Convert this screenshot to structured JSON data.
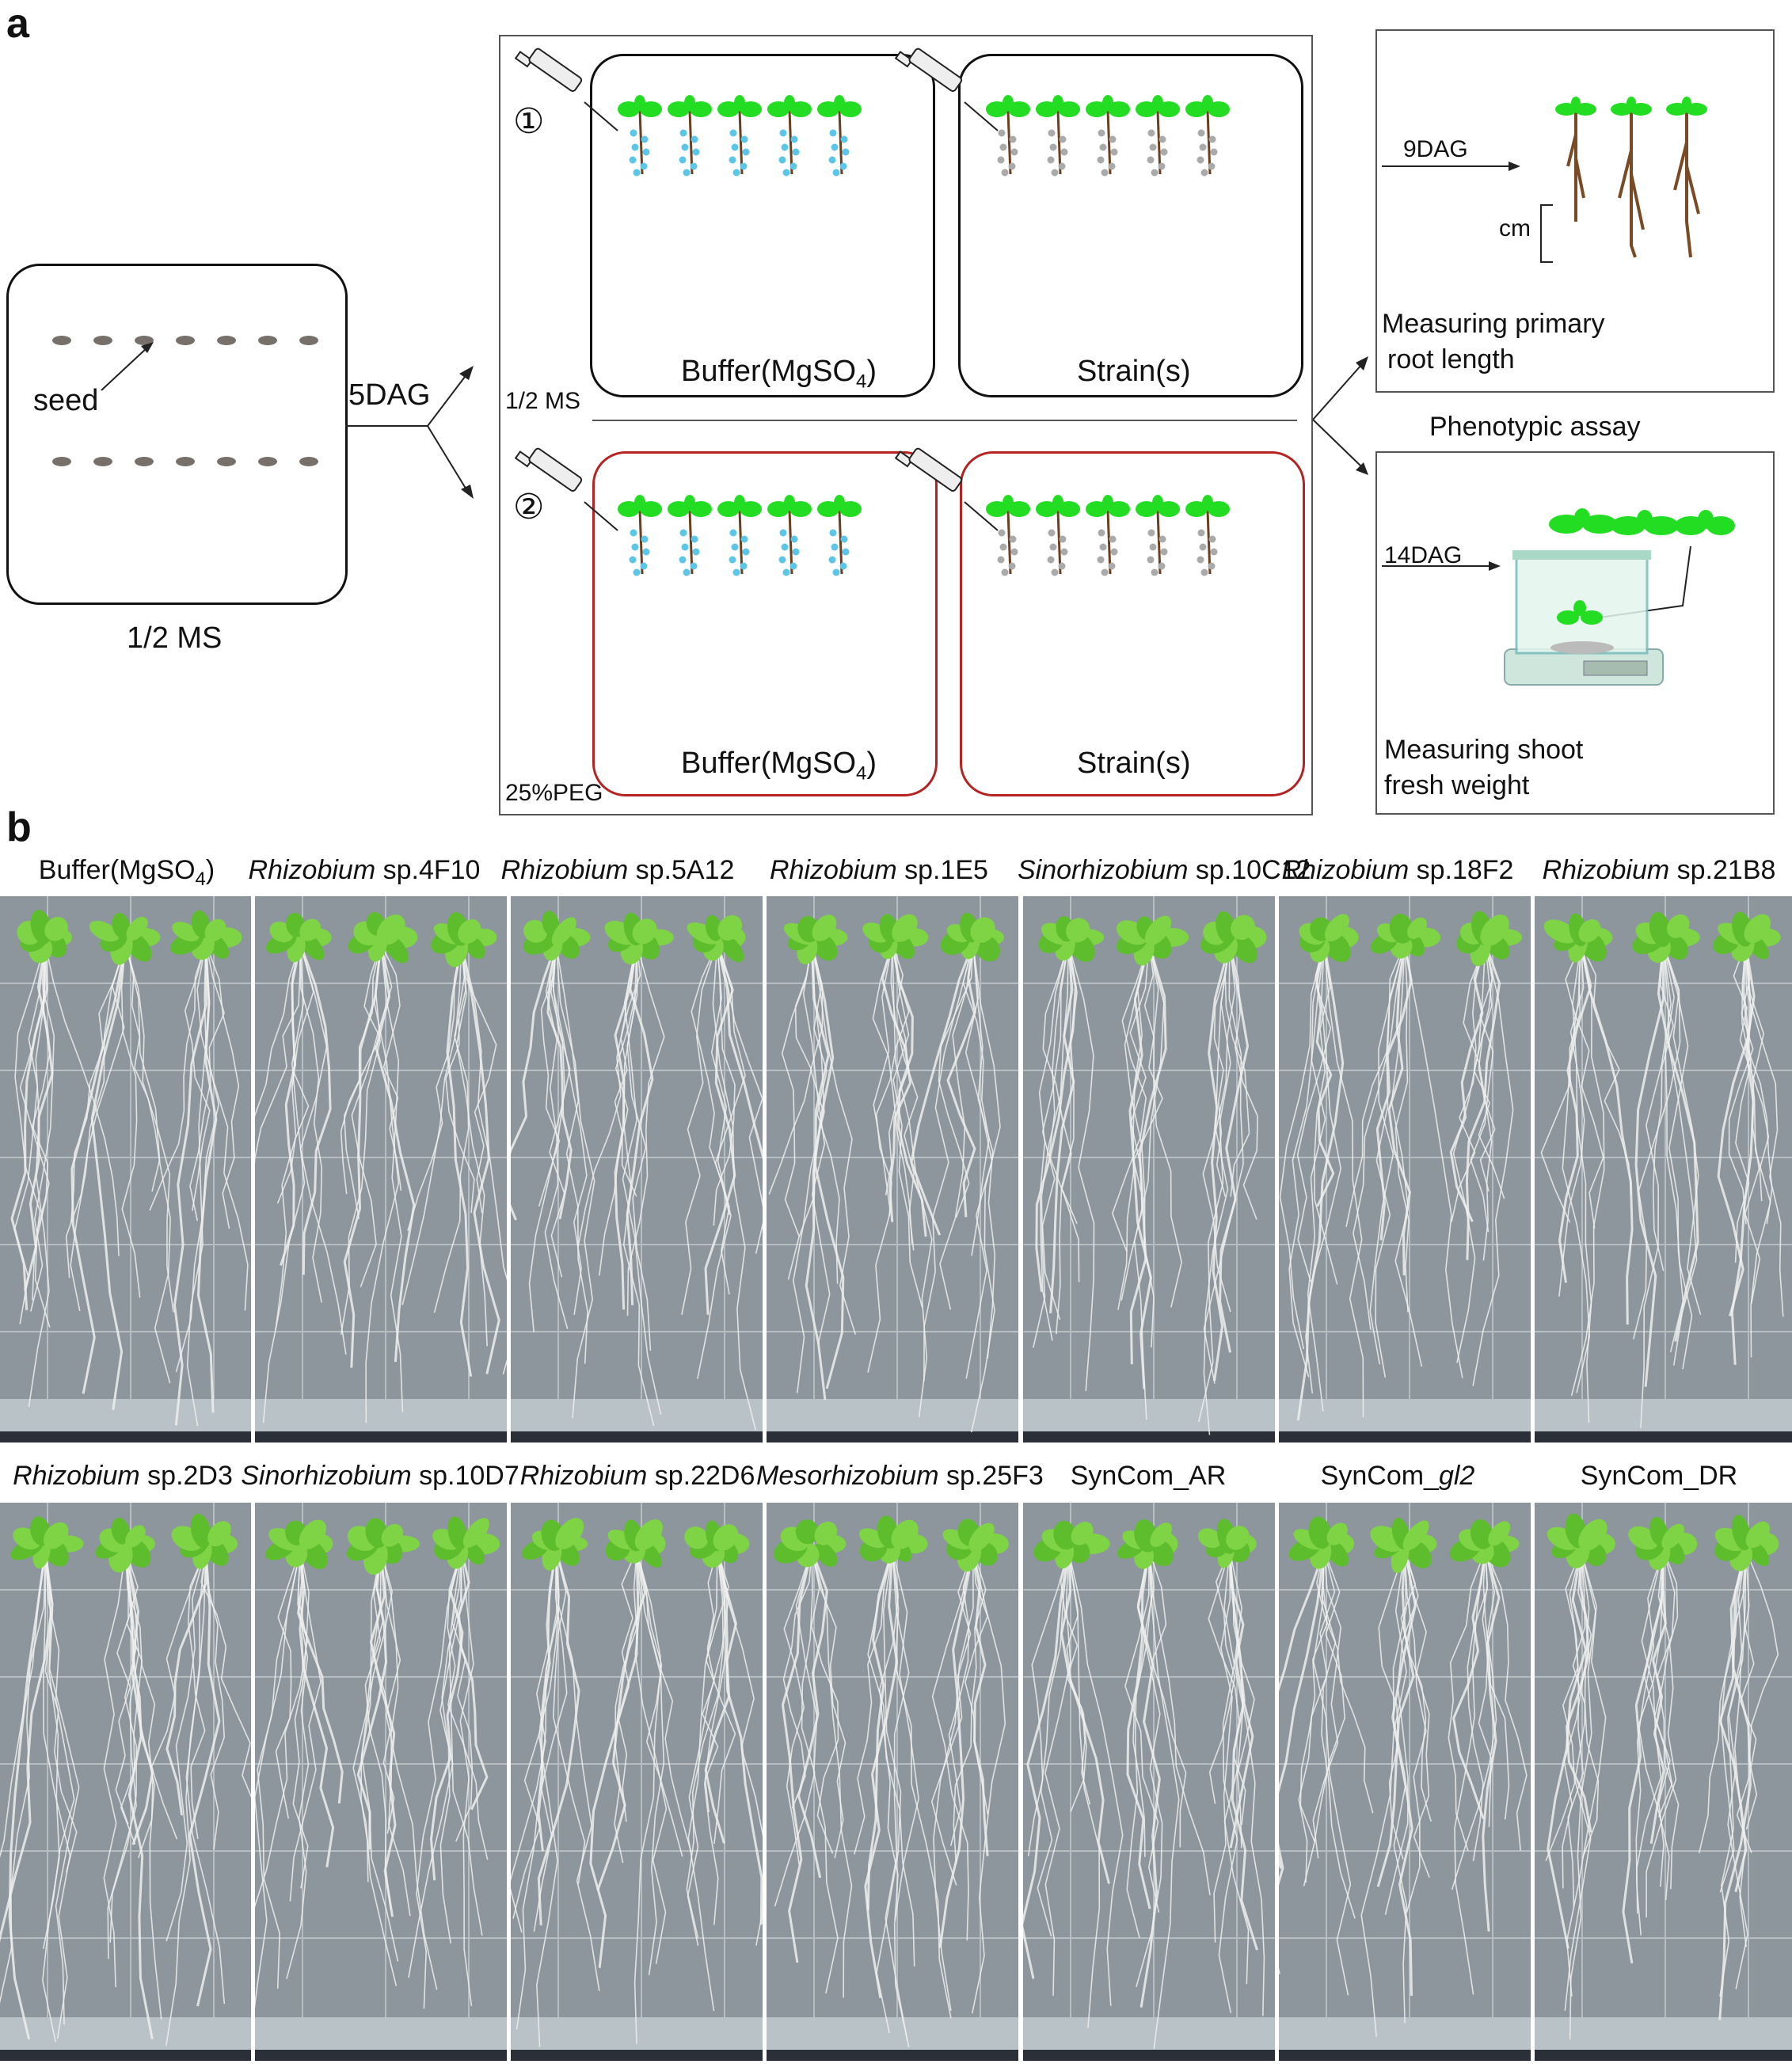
{
  "panel_a": {
    "letter": "a",
    "seed_plate": {
      "seed_label": "seed",
      "medium_label": "1/2 MS"
    },
    "arrow_label": "5DAG",
    "conditions": [
      {
        "marker": "①",
        "medium": "1/2 MS",
        "left_box": "Buffer(MgSO",
        "left_box_sub": "4",
        "left_box_end": ")",
        "right_box": "Strain(s)"
      },
      {
        "marker": "②",
        "medium": "25%PEG",
        "left_box": "Buffer(MgSO",
        "left_box_sub": "4",
        "left_box_end": ")",
        "right_box": "Strain(s)"
      }
    ],
    "assays": {
      "root": {
        "day": "9DAG",
        "scale": "cm",
        "caption_line1": "Measuring primary",
        "caption_line2": "root length"
      },
      "title": "Phenotypic assay",
      "shoot": {
        "day": "14DAG",
        "caption_line1": "Measuring shoot",
        "caption_line2": "fresh weight"
      }
    }
  },
  "panel_b": {
    "letter": "b",
    "row1": [
      {
        "italic": "",
        "plain": "Buffer(MgSO",
        "sub": "4",
        "end": ")"
      },
      {
        "italic": "Rhizobium",
        "plain": " sp.4F10",
        "sub": "",
        "end": ""
      },
      {
        "italic": "Rhizobium",
        "plain": " sp.5A12",
        "sub": "",
        "end": ""
      },
      {
        "italic": "Rhizobium",
        "plain": " sp.1E5",
        "sub": "",
        "end": ""
      },
      {
        "italic": "Sinorhizobium",
        "plain": " sp.10C12",
        "sub": "",
        "end": ""
      },
      {
        "italic": "Rhizobium",
        "plain": " sp.18F2",
        "sub": "",
        "end": ""
      },
      {
        "italic": "Rhizobium",
        "plain": " sp.21B8",
        "sub": "",
        "end": ""
      }
    ],
    "row2": [
      {
        "italic": "Rhizobium",
        "plain": " sp.2D3",
        "sub": "",
        "end": ""
      },
      {
        "italic": "Sinorhizobium",
        "plain": " sp.10D7",
        "sub": "",
        "end": ""
      },
      {
        "italic": "Rhizobium",
        "plain": " sp.22D6",
        "sub": "",
        "end": ""
      },
      {
        "italic": "Mesorhizobium",
        "plain": " sp.25F3",
        "sub": "",
        "end": ""
      },
      {
        "italic": "",
        "plain": "SynCom_AR",
        "sub": "",
        "end": ""
      },
      {
        "italic": "",
        "plain": "SynCom_",
        "sub": "",
        "end": "",
        "italic_tail": "gl2"
      },
      {
        "italic": "",
        "plain": "SynCom_DR",
        "sub": "",
        "end": ""
      }
    ]
  },
  "colors": {
    "leaf": "#22dd22",
    "buffer_dots": "#5bc6e8",
    "strain_dots": "#aaaaaa",
    "root": "#6b3f1f",
    "peg_border": "#b52323",
    "plate_bg": "#8c949a"
  }
}
